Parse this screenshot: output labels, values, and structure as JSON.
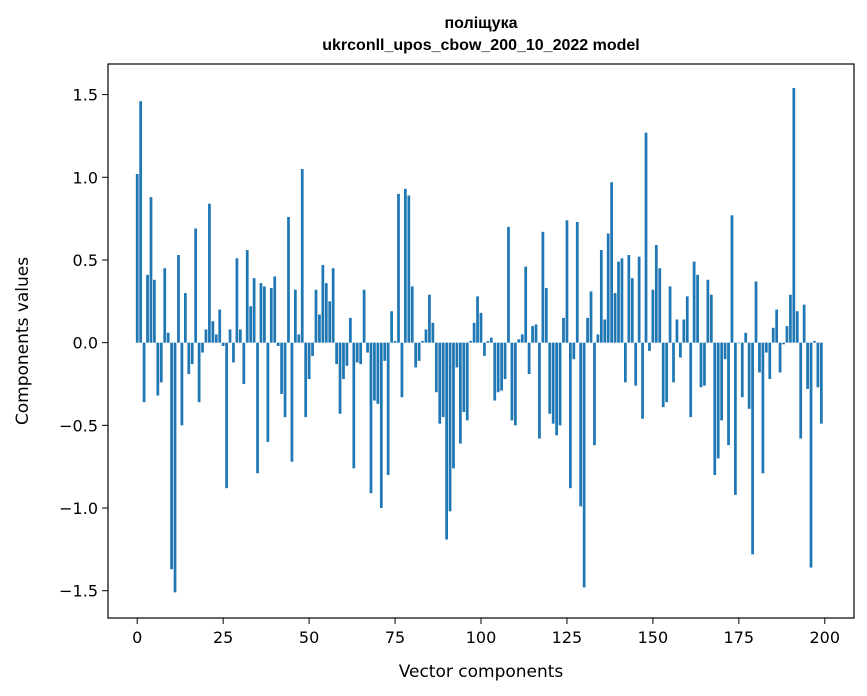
{
  "chart_data": {
    "type": "bar",
    "title": "поліщука",
    "subtitle": "ukrconll_upos_cbow_200_10_2022 model",
    "xlabel": "Vector components",
    "ylabel": "Components values",
    "xlim": [
      -8.5,
      208.5
    ],
    "ylim": [
      -1.665,
      1.685
    ],
    "xticks": [
      0,
      25,
      50,
      75,
      100,
      125,
      150,
      175,
      200
    ],
    "xtick_labels": [
      "0",
      "25",
      "50",
      "75",
      "100",
      "125",
      "150",
      "175",
      "200"
    ],
    "yticks": [
      -1.5,
      -1.0,
      -0.5,
      0.0,
      0.5,
      1.0,
      1.5
    ],
    "ytick_labels": [
      "−1.5",
      "−1.0",
      "−0.5",
      "0.0",
      "0.5",
      "1.0",
      "1.5"
    ],
    "bar_color": "#1f77b4",
    "grid": false,
    "x": [
      0,
      1,
      2,
      3,
      4,
      5,
      6,
      7,
      8,
      9,
      10,
      11,
      12,
      13,
      14,
      15,
      16,
      17,
      18,
      19,
      20,
      21,
      22,
      23,
      24,
      25,
      26,
      27,
      28,
      29,
      30,
      31,
      32,
      33,
      34,
      35,
      36,
      37,
      38,
      39,
      40,
      41,
      42,
      43,
      44,
      45,
      46,
      47,
      48,
      49,
      50,
      51,
      52,
      53,
      54,
      55,
      56,
      57,
      58,
      59,
      60,
      61,
      62,
      63,
      64,
      65,
      66,
      67,
      68,
      69,
      70,
      71,
      72,
      73,
      74,
      75,
      76,
      77,
      78,
      79,
      80,
      81,
      82,
      83,
      84,
      85,
      86,
      87,
      88,
      89,
      90,
      91,
      92,
      93,
      94,
      95,
      96,
      97,
      98,
      99,
      100,
      101,
      102,
      103,
      104,
      105,
      106,
      107,
      108,
      109,
      110,
      111,
      112,
      113,
      114,
      115,
      116,
      117,
      118,
      119,
      120,
      121,
      122,
      123,
      124,
      125,
      126,
      127,
      128,
      129,
      130,
      131,
      132,
      133,
      134,
      135,
      136,
      137,
      138,
      139,
      140,
      141,
      142,
      143,
      144,
      145,
      146,
      147,
      148,
      149,
      150,
      151,
      152,
      153,
      154,
      155,
      156,
      157,
      158,
      159,
      160,
      161,
      162,
      163,
      164,
      165,
      166,
      167,
      168,
      169,
      170,
      171,
      172,
      173,
      174,
      175,
      176,
      177,
      178,
      179,
      180,
      181,
      182,
      183,
      184,
      185,
      186,
      187,
      188,
      189,
      190,
      191,
      192,
      193,
      194,
      195,
      196,
      197,
      198,
      199
    ],
    "values": [
      1.02,
      1.46,
      -0.36,
      0.41,
      0.88,
      0.38,
      -0.32,
      -0.24,
      0.45,
      0.06,
      -1.37,
      -1.51,
      0.53,
      -0.5,
      0.3,
      -0.19,
      -0.13,
      0.69,
      -0.36,
      -0.06,
      0.08,
      0.84,
      0.13,
      0.05,
      0.2,
      -0.02,
      -0.88,
      0.08,
      -0.12,
      0.51,
      0.08,
      -0.25,
      0.56,
      0.22,
      0.39,
      -0.79,
      0.36,
      0.34,
      -0.6,
      0.33,
      0.4,
      -0.02,
      -0.31,
      -0.45,
      0.76,
      -0.72,
      0.32,
      0.05,
      1.05,
      -0.45,
      -0.22,
      -0.08,
      0.32,
      0.17,
      0.47,
      0.36,
      0.25,
      0.45,
      -0.13,
      -0.43,
      -0.22,
      -0.14,
      0.15,
      -0.76,
      -0.12,
      -0.13,
      0.32,
      -0.06,
      -0.91,
      -0.35,
      -0.37,
      -1.0,
      -0.11,
      -0.8,
      0.19,
      0.01,
      0.9,
      -0.33,
      0.93,
      0.89,
      0.34,
      -0.15,
      -0.11,
      0.01,
      0.08,
      0.29,
      0.12,
      -0.3,
      -0.49,
      -0.45,
      -1.19,
      -1.02,
      -0.76,
      -0.15,
      -0.61,
      -0.42,
      -0.47,
      0.01,
      0.12,
      0.28,
      0.18,
      -0.08,
      0.01,
      0.03,
      -0.35,
      -0.3,
      -0.29,
      -0.22,
      0.7,
      -0.47,
      -0.5,
      0.02,
      0.05,
      0.46,
      -0.19,
      0.1,
      0.11,
      -0.58,
      0.67,
      0.33,
      -0.43,
      -0.49,
      -0.56,
      -0.5,
      0.15,
      0.74,
      -0.88,
      -0.1,
      0.73,
      -0.99,
      -1.48,
      0.15,
      0.31,
      -0.62,
      0.05,
      0.56,
      0.14,
      0.66,
      0.97,
      0.3,
      0.49,
      0.51,
      -0.24,
      0.53,
      0.39,
      -0.26,
      0.52,
      -0.46,
      1.27,
      -0.05,
      0.32,
      0.59,
      0.45,
      -0.39,
      -0.36,
      0.34,
      -0.24,
      0.14,
      -0.09,
      0.14,
      0.28,
      -0.45,
      0.49,
      0.41,
      -0.27,
      -0.26,
      0.38,
      0.29,
      -0.8,
      -0.7,
      -0.47,
      -0.1,
      -0.62,
      0.77,
      -0.92,
      0.0,
      -0.33,
      0.06,
      -0.4,
      -1.28,
      0.37,
      -0.18,
      -0.79,
      -0.06,
      -0.22,
      0.09,
      0.2,
      -0.18,
      -0.01,
      0.1,
      0.29,
      1.54,
      0.19,
      -0.58,
      0.23,
      -0.28,
      -1.36,
      0.01,
      -0.27,
      -0.49
    ]
  }
}
